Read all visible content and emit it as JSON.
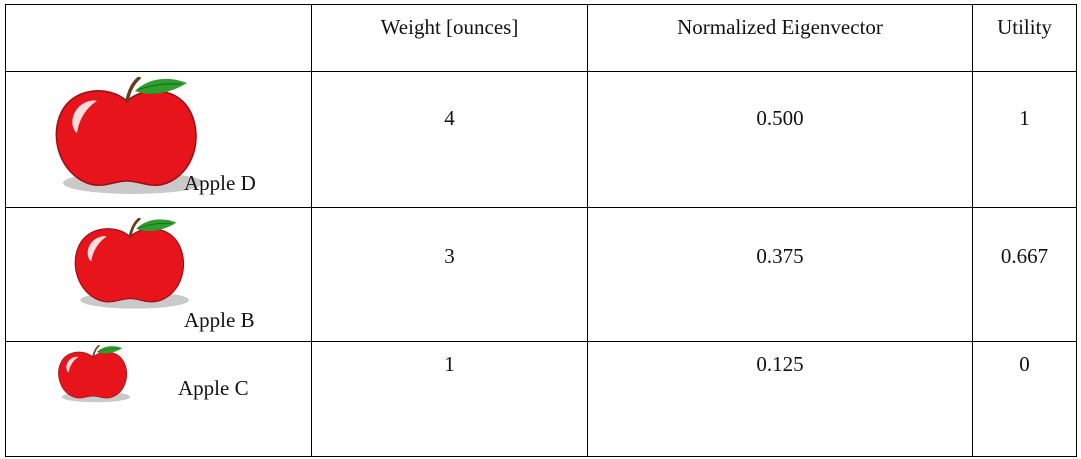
{
  "table": {
    "headers": [
      "",
      "Weight [ounces]",
      "Normalized Eigenvector",
      "Utility"
    ],
    "rows": [
      {
        "label": "Apple D",
        "weight": "4",
        "eigenvector": "0.500",
        "utility": "1",
        "icon": "apple-icon"
      },
      {
        "label": "Apple B",
        "weight": "3",
        "eigenvector": "0.375",
        "utility": "0.667",
        "icon": "apple-icon"
      },
      {
        "label": "Apple C",
        "weight": "1",
        "eigenvector": "0.125",
        "utility": "0",
        "icon": "apple-icon"
      }
    ]
  },
  "colors": {
    "apple_red": "#e8141c",
    "leaf_green": "#2e9e2e",
    "shadow_gray": "#c8c8c8"
  }
}
